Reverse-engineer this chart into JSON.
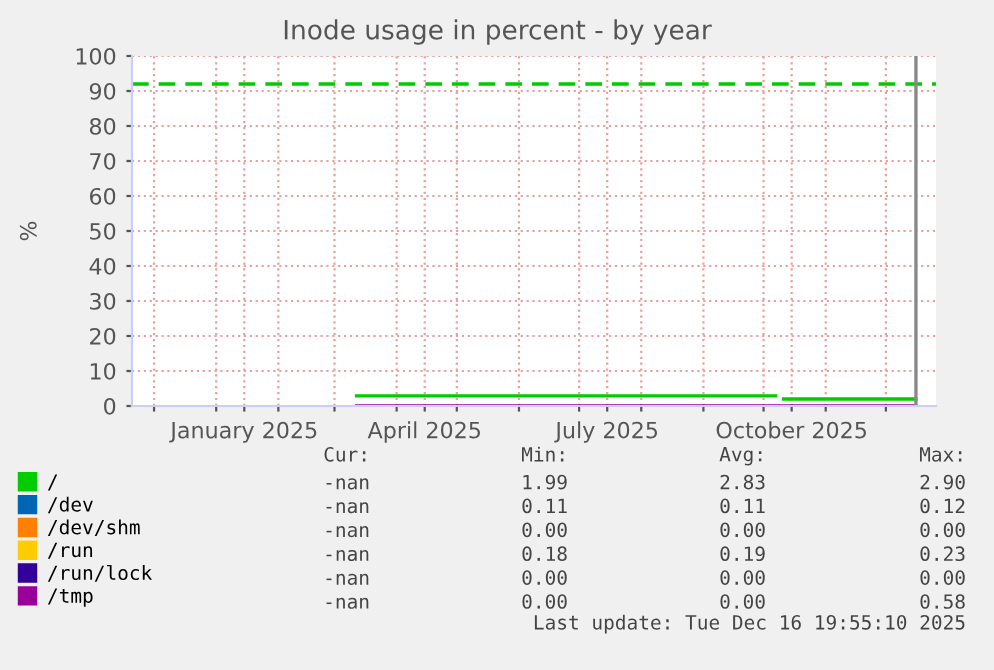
{
  "chart_data": {
    "type": "line",
    "title": "Inode usage in percent - by year",
    "ylabel": "%",
    "xlim": [
      "2024-11-20",
      "2025-12-26"
    ],
    "ylim": [
      0,
      100
    ],
    "xticks": [
      {
        "value": "2024-12-01",
        "label": null
      },
      {
        "value": "2025-01-01",
        "label": null
      },
      {
        "value": "2025-01-15",
        "label": "January 2025"
      },
      {
        "value": "2025-02-01",
        "label": null
      },
      {
        "value": "2025-03-01",
        "label": null
      },
      {
        "value": "2025-04-01",
        "label": null
      },
      {
        "value": "2025-04-15",
        "label": "April 2025"
      },
      {
        "value": "2025-05-01",
        "label": null
      },
      {
        "value": "2025-06-01",
        "label": null
      },
      {
        "value": "2025-07-01",
        "label": null
      },
      {
        "value": "2025-07-15",
        "label": "July 2025"
      },
      {
        "value": "2025-08-01",
        "label": null
      },
      {
        "value": "2025-09-01",
        "label": null
      },
      {
        "value": "2025-10-01",
        "label": null
      },
      {
        "value": "2025-10-15",
        "label": "October 2025"
      },
      {
        "value": "2025-11-01",
        "label": null
      },
      {
        "value": "2025-12-01",
        "label": null
      }
    ],
    "yticks": [
      0,
      10,
      20,
      30,
      40,
      50,
      60,
      70,
      80,
      90,
      100
    ],
    "grid": true,
    "legend": "bottom left",
    "marker": "none",
    "line_style": "solid",
    "series": [
      {
        "name": "/",
        "color": "#00cc00",
        "x": [
          "2025-03-12",
          "2025-10-07",
          "2025-10-09",
          "2025-10-11",
          "2025-12-16"
        ],
        "values": [
          2.9,
          2.9,
          null,
          2.0,
          2.0
        ]
      },
      {
        "name": "/dev",
        "color": "#0066b3"
      },
      {
        "name": "/dev/shm",
        "color": "#ff8000"
      },
      {
        "name": "/run",
        "color": "#ffcc00"
      },
      {
        "name": "/run/lock",
        "color": "#330099"
      },
      {
        "name": "/tmp",
        "color": "#990099",
        "x": [
          "2025-03-12",
          "2025-12-16"
        ],
        "values": [
          0,
          0
        ]
      }
    ],
    "ref_lines": [
      {
        "axis": "y",
        "value": 92,
        "label": null,
        "color": "#00cc00",
        "line_style": "dashed"
      },
      {
        "axis": "x",
        "value": "2025-12-16",
        "label": null,
        "color": "#888888",
        "line_style": "solid"
      }
    ],
    "annotations": [
      "Cur:",
      "Min:",
      "Avg:",
      "Max:",
      "-nan",
      "1.99",
      "2.83",
      "2.90",
      "-nan",
      "0.11",
      "0.11",
      "0.12",
      "-nan",
      "0.00",
      "0.00",
      "0.00",
      "-nan",
      "0.18",
      "0.19",
      "0.23",
      "-nan",
      "0.00",
      "0.00",
      "0.00",
      "-nan",
      "0.00",
      "0.00",
      "0.58",
      "Last update: Tue Dec 16 19:55:10 2025"
    ]
  }
}
